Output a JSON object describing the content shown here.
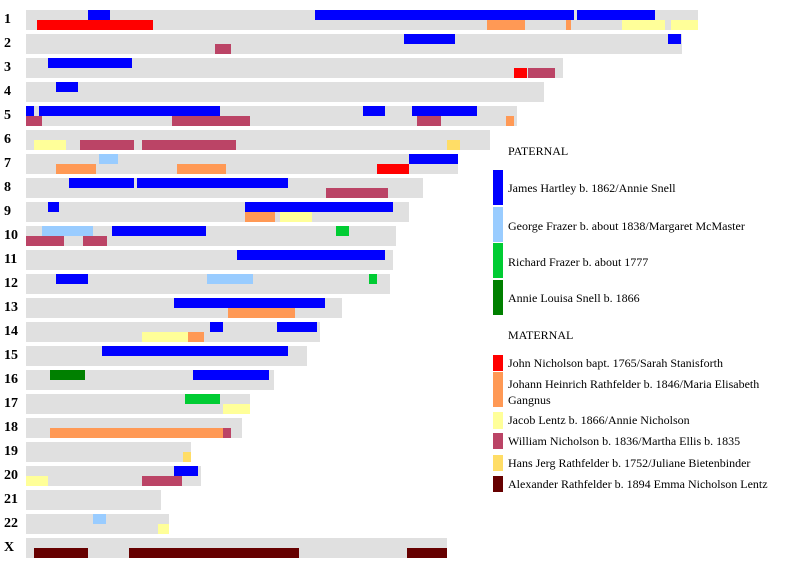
{
  "chart_data": {
    "type": "chromosome-map",
    "units": "Mb",
    "legend_headers": {
      "paternal": "PATERNAL",
      "maternal": "MATERNAL"
    },
    "legend": [
      {
        "label": "James Hartley b. 1862/Annie Snell",
        "color": "#0000ff",
        "side": "paternal"
      },
      {
        "label": "George Frazer b. about 1838/Margaret McMaster",
        "color": "#99ccff",
        "side": "paternal"
      },
      {
        "label": "Richard Frazer b. about 1777",
        "color": "#00cc33",
        "side": "paternal"
      },
      {
        "label": "Annie Louisa Snell b. 1866",
        "color": "#008000",
        "side": "paternal"
      },
      {
        "label": "John Nicholson bapt. 1765/Sarah Stanisforth",
        "color": "#ff0000",
        "side": "maternal"
      },
      {
        "label": "Johann Heinrich Rathfelder b. 1846/Maria Elisabeth Gangnus",
        "color": "#ff9955",
        "side": "maternal"
      },
      {
        "label": "Jacob Lentz b. 1866/Annie Nicholson",
        "color": "#ffff99",
        "side": "maternal"
      },
      {
        "label": "William Nicholson b. 1836/Martha Ellis b. 1835",
        "color": "#bb4466",
        "side": "maternal"
      },
      {
        "label": "Hans Jerg Rathfelder b. 1752/Juliane Bietenbinder",
        "color": "#ffdd66",
        "side": "maternal"
      },
      {
        "label": "Alexander Rathfelder b. 1894 Emma Nicholson Lentz",
        "color": "#660000",
        "side": "maternal"
      }
    ],
    "chromosomes": [
      {
        "name": "1",
        "length": 249,
        "segments": [
          [
            0,
            23,
            31
          ],
          [
            0,
            107,
            203
          ],
          [
            0,
            204,
            233
          ],
          [
            4,
            4,
            47
          ],
          [
            5,
            171,
            185
          ],
          [
            5,
            200,
            202
          ],
          [
            6,
            221,
            237
          ],
          [
            6,
            239,
            249
          ]
        ]
      },
      {
        "name": "2",
        "length": 243,
        "segments": [
          [
            0,
            140,
            159
          ],
          [
            0,
            238,
            243
          ],
          [
            7,
            70,
            76
          ]
        ]
      },
      {
        "name": "3",
        "length": 199,
        "segments": [
          [
            0,
            8,
            39
          ],
          [
            4,
            181,
            186
          ],
          [
            7,
            186,
            196
          ]
        ]
      },
      {
        "name": "4",
        "length": 192,
        "segments": [
          [
            0,
            11,
            19
          ]
        ]
      },
      {
        "name": "5",
        "length": 182,
        "segments": [
          [
            0,
            0,
            3
          ],
          [
            0,
            5,
            72
          ],
          [
            0,
            125,
            133
          ],
          [
            0,
            143,
            167
          ],
          [
            7,
            0,
            6
          ],
          [
            7,
            54,
            83
          ],
          [
            7,
            145,
            154
          ],
          [
            5,
            178,
            181
          ]
        ]
      },
      {
        "name": "6",
        "length": 172,
        "segments": [
          [
            6,
            3,
            15
          ],
          [
            7,
            20,
            40
          ],
          [
            7,
            43,
            78
          ],
          [
            8,
            156,
            161
          ]
        ]
      },
      {
        "name": "7",
        "length": 160,
        "segments": [
          [
            1,
            27,
            34
          ],
          [
            0,
            142,
            160
          ],
          [
            5,
            11,
            26
          ],
          [
            5,
            56,
            74
          ],
          [
            4,
            130,
            142
          ]
        ]
      },
      {
        "name": "8",
        "length": 147,
        "segments": [
          [
            0,
            16,
            40
          ],
          [
            0,
            41,
            97
          ],
          [
            7,
            111,
            134
          ]
        ]
      },
      {
        "name": "9",
        "length": 142,
        "segments": [
          [
            0,
            8,
            12
          ],
          [
            0,
            81,
            136
          ],
          [
            5,
            81,
            92
          ],
          [
            6,
            94,
            106
          ]
        ]
      },
      {
        "name": "10",
        "length": 137,
        "segments": [
          [
            1,
            6,
            25
          ],
          [
            0,
            32,
            67
          ],
          [
            2,
            115,
            120
          ],
          [
            7,
            0,
            14
          ],
          [
            7,
            21,
            30
          ]
        ]
      },
      {
        "name": "11",
        "length": 136,
        "segments": [
          [
            0,
            78,
            133
          ]
        ]
      },
      {
        "name": "12",
        "length": 135,
        "segments": [
          [
            0,
            11,
            23
          ],
          [
            1,
            67,
            84
          ],
          [
            2,
            127,
            130
          ]
        ]
      },
      {
        "name": "13",
        "length": 117,
        "segments": [
          [
            0,
            55,
            111
          ],
          [
            5,
            75,
            100
          ]
        ]
      },
      {
        "name": "14",
        "length": 109,
        "segments": [
          [
            0,
            68,
            73
          ],
          [
            0,
            93,
            108
          ],
          [
            6,
            43,
            60
          ],
          [
            5,
            60,
            66
          ]
        ]
      },
      {
        "name": "15",
        "length": 104,
        "segments": [
          [
            0,
            28,
            97
          ]
        ]
      },
      {
        "name": "16",
        "length": 92,
        "segments": [
          [
            3,
            9,
            22
          ],
          [
            0,
            62,
            90
          ]
        ]
      },
      {
        "name": "17",
        "length": 83,
        "segments": [
          [
            2,
            59,
            72
          ],
          [
            6,
            73,
            83
          ]
        ]
      },
      {
        "name": "18",
        "length": 80,
        "segments": [
          [
            5,
            9,
            73
          ],
          [
            7,
            73,
            76
          ]
        ]
      },
      {
        "name": "19",
        "length": 61,
        "segments": [
          [
            8,
            58,
            61
          ]
        ]
      },
      {
        "name": "20",
        "length": 65,
        "segments": [
          [
            0,
            55,
            64
          ],
          [
            6,
            0,
            8
          ],
          [
            7,
            43,
            58
          ]
        ]
      },
      {
        "name": "21",
        "length": 50,
        "segments": []
      },
      {
        "name": "22",
        "length": 53,
        "segments": [
          [
            1,
            25,
            30
          ],
          [
            6,
            49,
            53
          ]
        ]
      },
      {
        "name": "X",
        "length": 156,
        "segments": [
          [
            9,
            3,
            23
          ],
          [
            9,
            38,
            101
          ],
          [
            9,
            141,
            156
          ]
        ]
      }
    ]
  }
}
